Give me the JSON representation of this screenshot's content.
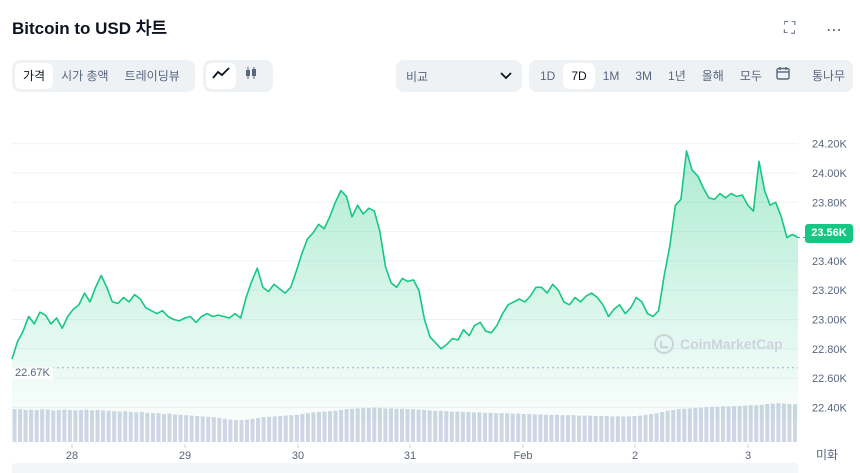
{
  "header": {
    "title": "Bitcoin to USD 차트",
    "fullscreen_icon": "fullscreen-icon",
    "more_icon": "more-icon"
  },
  "toolbar": {
    "view_tabs": [
      "가격",
      "시가 총액",
      "트레이딩뷰"
    ],
    "active_view": "가격",
    "chart_icons": [
      "line-chart-icon",
      "candlestick-icon"
    ],
    "compare_label": "비교",
    "ranges": [
      "1D",
      "7D",
      "1M",
      "3M",
      "1년",
      "올해",
      "모두"
    ],
    "active_range": "7D",
    "calendar_icon": "calendar-icon",
    "log_label": "통나무"
  },
  "watermark": "CoinMarketCap",
  "future_label": "미화",
  "colors": {
    "line": "#16c784",
    "volume": "#cfd6e4",
    "grid": "#eff2f5"
  },
  "chart_data": {
    "type": "area",
    "x_ticks": [
      "28",
      "29",
      "30",
      "31",
      "Feb",
      "2",
      "3"
    ],
    "y_ticks": [
      "22.40K",
      "22.60K",
      "22.80K",
      "23.00K",
      "23.20K",
      "23.40K",
      "23.60K",
      "23.80K",
      "24.00K",
      "24.20K"
    ],
    "ylim": [
      22.3,
      24.28
    ],
    "current_price_label": "23.56K",
    "min_label": "22.67K",
    "grid": true,
    "series": [
      {
        "values": [
          22.73,
          22.85,
          22.92,
          23.02,
          22.97,
          23.05,
          23.03,
          22.97,
          23.01,
          22.94,
          23.02,
          23.07,
          23.1,
          23.18,
          23.12,
          23.22,
          23.3,
          23.22,
          23.12,
          23.11,
          23.15,
          23.12,
          23.17,
          23.14,
          23.08,
          23.06,
          23.04,
          23.06,
          23.02,
          23.0,
          22.99,
          23.01,
          23.02,
          22.98,
          23.02,
          23.04,
          23.02,
          23.03,
          23.02,
          23.01,
          23.04,
          23.01,
          23.15,
          23.26,
          23.35,
          23.22,
          23.19,
          23.24,
          23.21,
          23.18,
          23.22,
          23.33,
          23.45,
          23.55,
          23.59,
          23.65,
          23.62,
          23.7,
          23.8,
          23.88,
          23.84,
          23.7,
          23.78,
          23.72,
          23.76,
          23.74,
          23.6,
          23.36,
          23.25,
          23.22,
          23.28,
          23.26,
          23.27,
          23.2,
          23.0,
          22.88,
          22.84,
          22.8,
          22.83,
          22.87,
          22.86,
          22.93,
          22.89,
          22.96,
          22.98,
          22.92,
          22.91,
          22.96,
          23.04,
          23.1,
          23.12,
          23.14,
          23.12,
          23.16,
          23.22,
          23.22,
          23.18,
          23.24,
          23.2,
          23.12,
          23.1,
          23.15,
          23.12,
          23.16,
          23.18,
          23.15,
          23.1,
          23.02,
          23.07,
          23.1,
          23.04,
          23.08,
          23.15,
          23.12,
          23.04,
          23.02,
          23.06,
          23.3,
          23.5,
          23.78,
          23.82,
          24.15,
          24.02,
          23.98,
          23.9,
          23.83,
          23.82,
          23.86,
          23.83,
          23.86,
          23.84,
          23.85,
          23.78,
          23.74,
          24.08,
          23.88,
          23.78,
          23.8,
          23.7,
          23.56,
          23.58,
          23.56
        ]
      },
      {
        "name": "volume",
        "values": [
          0.82,
          0.82,
          0.8,
          0.81,
          0.8,
          0.82,
          0.81,
          0.79,
          0.8,
          0.81,
          0.8,
          0.79,
          0.8,
          0.81,
          0.79,
          0.8,
          0.79,
          0.78,
          0.77,
          0.76,
          0.77,
          0.75,
          0.74,
          0.75,
          0.73,
          0.72,
          0.72,
          0.7,
          0.71,
          0.69,
          0.68,
          0.67,
          0.66,
          0.65,
          0.64,
          0.63,
          0.62,
          0.6,
          0.58,
          0.56,
          0.55,
          0.55,
          0.56,
          0.58,
          0.6,
          0.62,
          0.63,
          0.64,
          0.65,
          0.66,
          0.67,
          0.68,
          0.7,
          0.72,
          0.74,
          0.75,
          0.76,
          0.77,
          0.78,
          0.8,
          0.82,
          0.83,
          0.84,
          0.85,
          0.85,
          0.86,
          0.85,
          0.84,
          0.84,
          0.83,
          0.83,
          0.82,
          0.82,
          0.81,
          0.8,
          0.79,
          0.78,
          0.78,
          0.77,
          0.76,
          0.76,
          0.75,
          0.75,
          0.74,
          0.74,
          0.73,
          0.73,
          0.72,
          0.72,
          0.72,
          0.71,
          0.71,
          0.7,
          0.7,
          0.69,
          0.69,
          0.68,
          0.68,
          0.68,
          0.67,
          0.67,
          0.67,
          0.66,
          0.66,
          0.66,
          0.65,
          0.65,
          0.65,
          0.64,
          0.64,
          0.64,
          0.64,
          0.65,
          0.66,
          0.68,
          0.7,
          0.72,
          0.75,
          0.78,
          0.8,
          0.82,
          0.83,
          0.84,
          0.85,
          0.86,
          0.87,
          0.88,
          0.88,
          0.89,
          0.89,
          0.9,
          0.9,
          0.91,
          0.92,
          0.92,
          0.93,
          0.95,
          0.96,
          0.97,
          0.96,
          0.95,
          0.94
        ]
      }
    ]
  }
}
